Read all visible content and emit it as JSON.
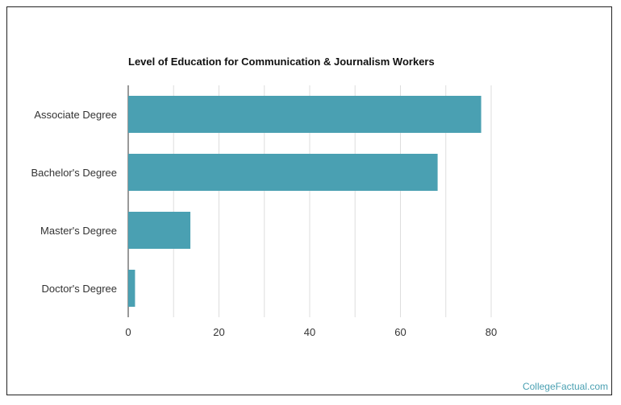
{
  "colors": {
    "bar": "#4aa0b2",
    "grid": "#dddddd",
    "axis": "#333333",
    "credit": "#4aa0b2"
  },
  "credit": "CollegeFactual.com",
  "chart_data": {
    "type": "bar",
    "orientation": "horizontal",
    "title": "Level of Education for Communication & Journalism Workers",
    "xlabel": "",
    "ylabel": "",
    "categories": [
      "Associate Degree",
      "Bachelor's Degree",
      "Master's Degree",
      "Doctor's Degree"
    ],
    "values": [
      77.8,
      68.2,
      13.7,
      1.5
    ],
    "xlim": [
      0,
      80
    ],
    "xticks": [
      0,
      20,
      40,
      60,
      80
    ],
    "grid": true,
    "legend": "none"
  }
}
